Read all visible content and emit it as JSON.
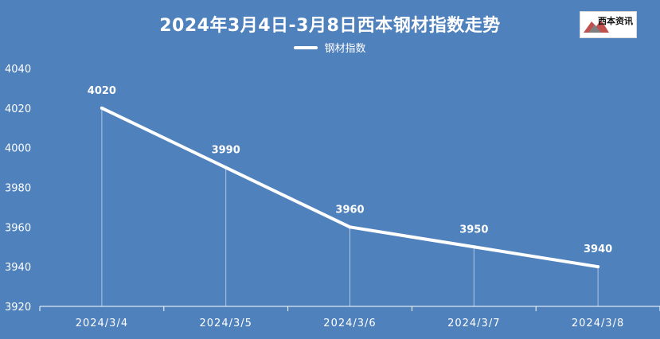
{
  "chart_data": {
    "type": "line",
    "title": "2024年3月4日-3月8日西本钢材指数走势",
    "categories": [
      "2024/3/4",
      "2024/3/5",
      "2024/3/6",
      "2024/3/7",
      "2024/3/8"
    ],
    "series": [
      {
        "name": "钢材指数",
        "values": [
          4020,
          3990,
          3960,
          3950,
          3940
        ]
      }
    ],
    "ylim": [
      3920,
      4040
    ],
    "yticks": [
      3920,
      3940,
      3960,
      3980,
      4000,
      4020,
      4040
    ],
    "xlabel": "",
    "ylabel": "",
    "grid": false,
    "data_labels": true,
    "legend_position": "top-center"
  },
  "logo": {
    "text": "西本资讯"
  },
  "colors": {
    "background": "#4f81bd",
    "line": "#ffffff",
    "text": "#ffffff"
  }
}
